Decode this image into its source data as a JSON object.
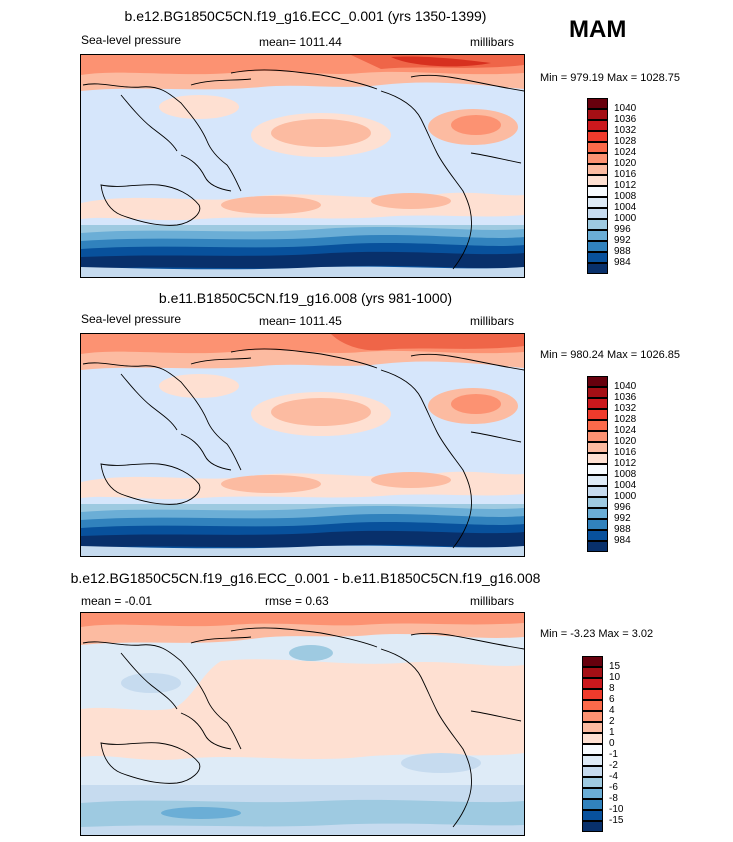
{
  "season": "MAM",
  "units": "millibars",
  "panels": [
    {
      "title": "b.e12.BG1850C5CN.f19_g16.ECC_0.001 (yrs 1350-1399)",
      "left": "Sea-level pressure",
      "center": "mean= 1011.44",
      "right": "millibars",
      "minmax": "Min = 979.19 Max = 1028.75"
    },
    {
      "title": "b.e11.B1850C5CN.f19_g16.008 (yrs 981-1000)",
      "left": "Sea-level pressure",
      "center": "mean= 1011.45",
      "right": "millibars",
      "minmax": "Min = 980.24 Max = 1026.85"
    },
    {
      "title": "b.e12.BG1850C5CN.f19_g16.ECC_0.001 - b.e11.B1850C5CN.f19_g16.008",
      "left": "mean =  -0.01",
      "center": "rmse =   0.63",
      "right": "millibars",
      "minmax": "Min =  -3.23 Max =   3.02"
    }
  ],
  "colorbars": {
    "absolute": {
      "labels": [
        "1040",
        "1036",
        "1032",
        "1028",
        "1024",
        "1020",
        "1016",
        "1012",
        "1008",
        "1004",
        "1000",
        "996",
        "992",
        "988",
        "984"
      ],
      "colors": [
        "#67000d",
        "#a50f15",
        "#cb181d",
        "#ef3b2c",
        "#fb6a4a",
        "#fc9272",
        "#fcbba1",
        "#fee0d2",
        "#f7fbff",
        "#deebf7",
        "#c6dbef",
        "#9ecae1",
        "#6baed6",
        "#3182bd",
        "#08519c",
        "#08306b"
      ]
    },
    "difference": {
      "labels": [
        "15",
        "10",
        "8",
        "6",
        "4",
        "2",
        "1",
        "0",
        "-1",
        "-2",
        "-4",
        "-6",
        "-8",
        "-10",
        "-15"
      ],
      "colors": [
        "#67000d",
        "#a50f15",
        "#cb181d",
        "#ef3b2c",
        "#fb6a4a",
        "#fc9272",
        "#fcbba1",
        "#fee0d2",
        "#f7fbff",
        "#deebf7",
        "#c6dbef",
        "#9ecae1",
        "#6baed6",
        "#3182bd",
        "#08519c",
        "#08306b"
      ]
    }
  }
}
